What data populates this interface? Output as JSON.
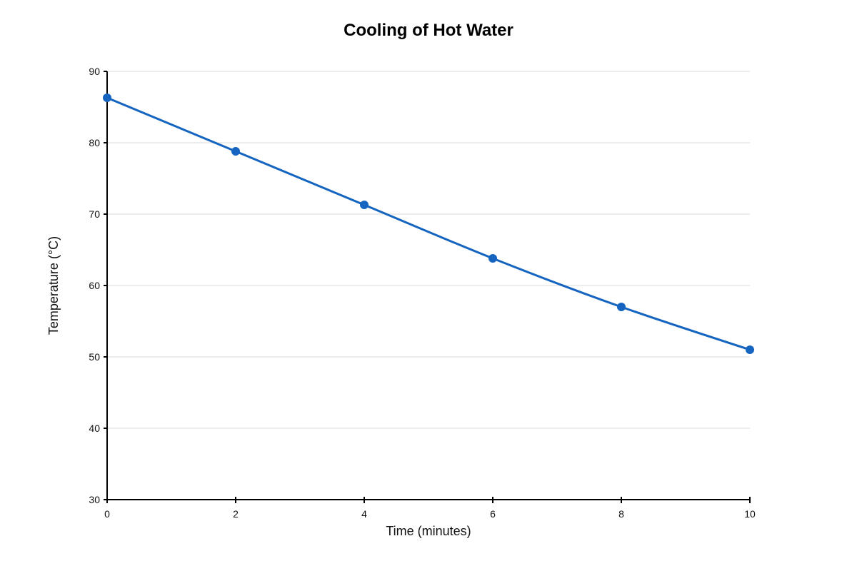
{
  "chart_data": {
    "type": "line",
    "title": "Cooling of Hot Water",
    "xlabel": "Time (minutes)",
    "ylabel": "Temperature (°C)",
    "xlim": [
      0,
      10
    ],
    "ylim": [
      30,
      90
    ],
    "xticks": [
      0,
      2,
      4,
      6,
      8,
      10
    ],
    "yticks": [
      30,
      40,
      50,
      60,
      70,
      80,
      90
    ],
    "grid": "horizontal",
    "legend": "none",
    "smooth": true,
    "series": [
      {
        "color": "#1565c0",
        "x": [
          0,
          2,
          4,
          6,
          8,
          10
        ],
        "y": [
          86.3,
          78.8,
          71.3,
          63.8,
          57.0,
          51.0
        ]
      }
    ]
  }
}
